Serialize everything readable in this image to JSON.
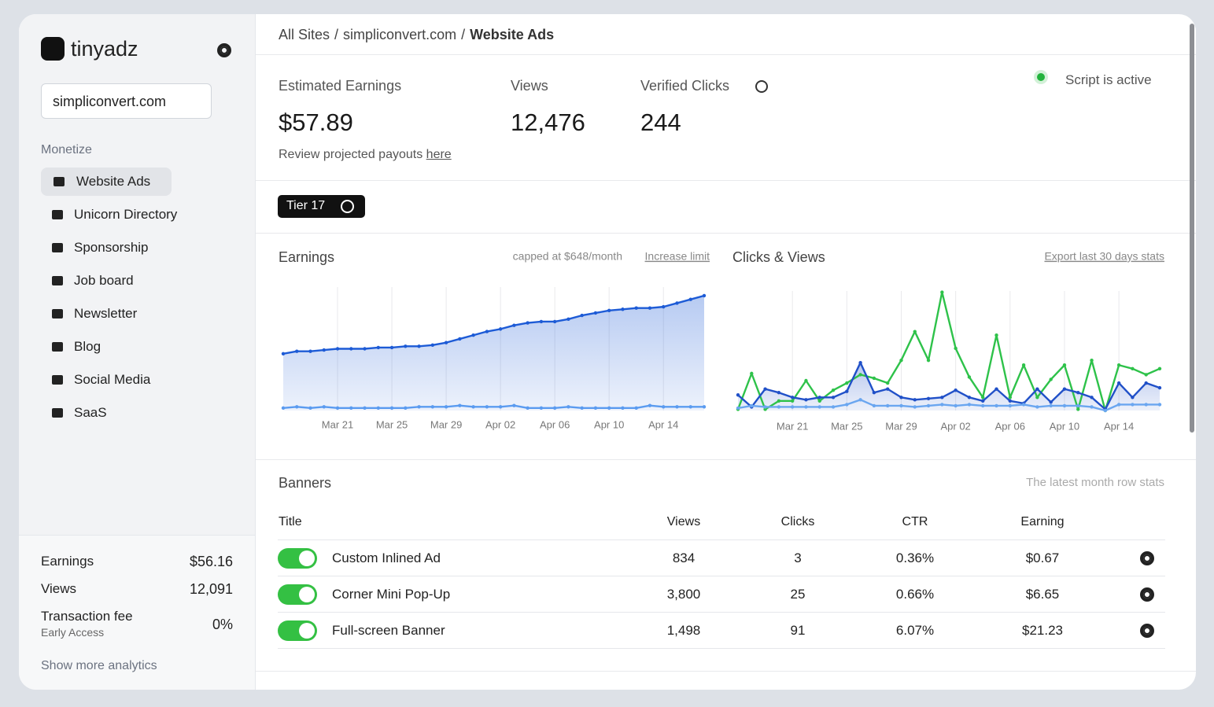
{
  "sidebar": {
    "brand": "tinyadz",
    "site_select": "simpliconvert.com",
    "section": "Monetize",
    "nav": [
      "Website Ads",
      "Unicorn Directory",
      "Sponsorship",
      "Job board",
      "Newsletter",
      "Blog",
      "Social Media",
      "SaaS"
    ],
    "summary": [
      {
        "label": "Earnings",
        "value": "$56.16"
      },
      {
        "label": "Views",
        "value": "12,091"
      },
      {
        "label": "Transaction fee",
        "sublabel": "Early Access",
        "value": "0%"
      }
    ],
    "more_link": "Show more analytics"
  },
  "breadcrumb": {
    "items": [
      "All Sites",
      "simpliconvert.com",
      "Website Ads"
    ],
    "separator": "/"
  },
  "stats": [
    {
      "label": "Estimated Earnings",
      "value": "$57.89"
    },
    {
      "label": "Views",
      "value": "12,476"
    },
    {
      "label": "Verified Clicks",
      "value": "244"
    }
  ],
  "payout_note": "Review projected payouts",
  "payout_link": "here",
  "status": "Script is active",
  "tier": "Tier 17",
  "chart_data": [
    {
      "type": "line",
      "title": "Earnings",
      "note": "capped at $648/month",
      "link": "Increase limit",
      "categories": [
        null,
        null,
        null,
        null,
        "Mar 21",
        null,
        null,
        null,
        "Mar 25",
        null,
        null,
        null,
        "Mar 29",
        null,
        null,
        null,
        "Apr 02",
        null,
        null,
        null,
        "Apr 06",
        null,
        null,
        null,
        "Apr 10",
        null,
        null,
        null,
        "Apr 14",
        null,
        null,
        null
      ],
      "series": [
        {
          "color": "#1d5bd6",
          "area": true,
          "values": [
            46,
            48,
            48,
            49,
            50,
            50,
            50,
            51,
            51,
            52,
            52,
            53,
            55,
            58,
            61,
            64,
            66,
            69,
            71,
            72,
            72,
            74,
            77,
            79,
            81,
            82,
            83,
            83,
            84,
            87,
            90,
            93
          ]
        },
        {
          "color": "#5a9bf0",
          "values": [
            2,
            3,
            2,
            3,
            2,
            2,
            2,
            2,
            2,
            2,
            3,
            3,
            3,
            4,
            3,
            3,
            3,
            4,
            2,
            2,
            2,
            3,
            2,
            2,
            2,
            2,
            2,
            4,
            3,
            3,
            3,
            3
          ]
        }
      ],
      "ylim": [
        0,
        100
      ],
      "grid": true
    },
    {
      "type": "line",
      "title": "Clicks & Views",
      "link": "Export last 30 days stats",
      "categories": [
        null,
        null,
        null,
        null,
        "Mar 21",
        null,
        null,
        null,
        "Mar 25",
        null,
        null,
        null,
        "Mar 29",
        null,
        null,
        null,
        "Apr 02",
        null,
        null,
        null,
        "Apr 06",
        null,
        null,
        null,
        "Apr 10",
        null,
        null,
        null,
        "Apr 14",
        null,
        null,
        null
      ],
      "series": [
        {
          "color": "#2ec24a",
          "values": [
            1,
            31,
            1,
            8,
            8,
            25,
            8,
            17,
            23,
            30,
            27,
            23,
            42,
            66,
            42,
            99,
            52,
            28,
            11,
            63,
            11,
            38,
            11,
            26,
            38,
            1,
            42,
            0,
            38,
            35,
            30,
            35
          ]
        },
        {
          "color": "#2050c8",
          "area": true,
          "values": [
            13,
            3,
            18,
            15,
            11,
            9,
            11,
            11,
            16,
            40,
            15,
            18,
            11,
            9,
            10,
            11,
            17,
            11,
            8,
            18,
            8,
            6,
            18,
            7,
            18,
            15,
            11,
            1,
            23,
            11,
            23,
            19
          ]
        },
        {
          "color": "#6aa6f0",
          "values": [
            2,
            4,
            3,
            3,
            3,
            3,
            3,
            3,
            5,
            9,
            4,
            4,
            4,
            3,
            4,
            5,
            4,
            5,
            4,
            4,
            4,
            5,
            3,
            4,
            4,
            4,
            3,
            0,
            5,
            5,
            5,
            5
          ]
        }
      ],
      "ylim": [
        0,
        100
      ],
      "grid": true
    }
  ],
  "banners": {
    "title": "Banners",
    "note": "The latest month row stats",
    "columns": [
      "Title",
      "Views",
      "Clicks",
      "CTR",
      "Earning"
    ],
    "rows": [
      [
        "Custom Inlined Ad",
        "834",
        "3",
        "0.36%",
        "$0.67"
      ],
      [
        "Corner Mini Pop-Up",
        "3,800",
        "25",
        "0.66%",
        "$6.65"
      ],
      [
        "Full-screen Banner",
        "1,498",
        "91",
        "6.07%",
        "$21.23"
      ]
    ]
  }
}
